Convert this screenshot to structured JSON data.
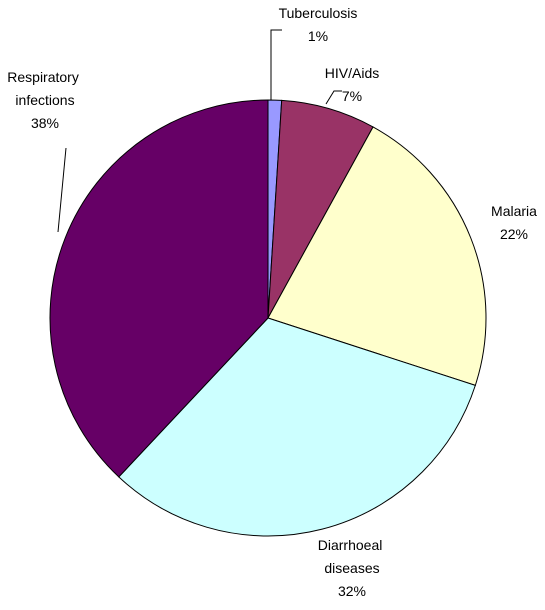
{
  "chart_data": {
    "type": "pie",
    "categories": [
      "Tuberculosis",
      "HIV/Aids",
      "Malaria",
      "Diarrhoeal diseases",
      "Respiratory infections"
    ],
    "values": [
      1,
      7,
      22,
      32,
      38
    ],
    "value_labels": [
      "1%",
      "7%",
      "22%",
      "32%",
      "38%"
    ],
    "colors": [
      "#9999ff",
      "#993366",
      "#ffffcc",
      "#ccffff",
      "#660066"
    ]
  }
}
